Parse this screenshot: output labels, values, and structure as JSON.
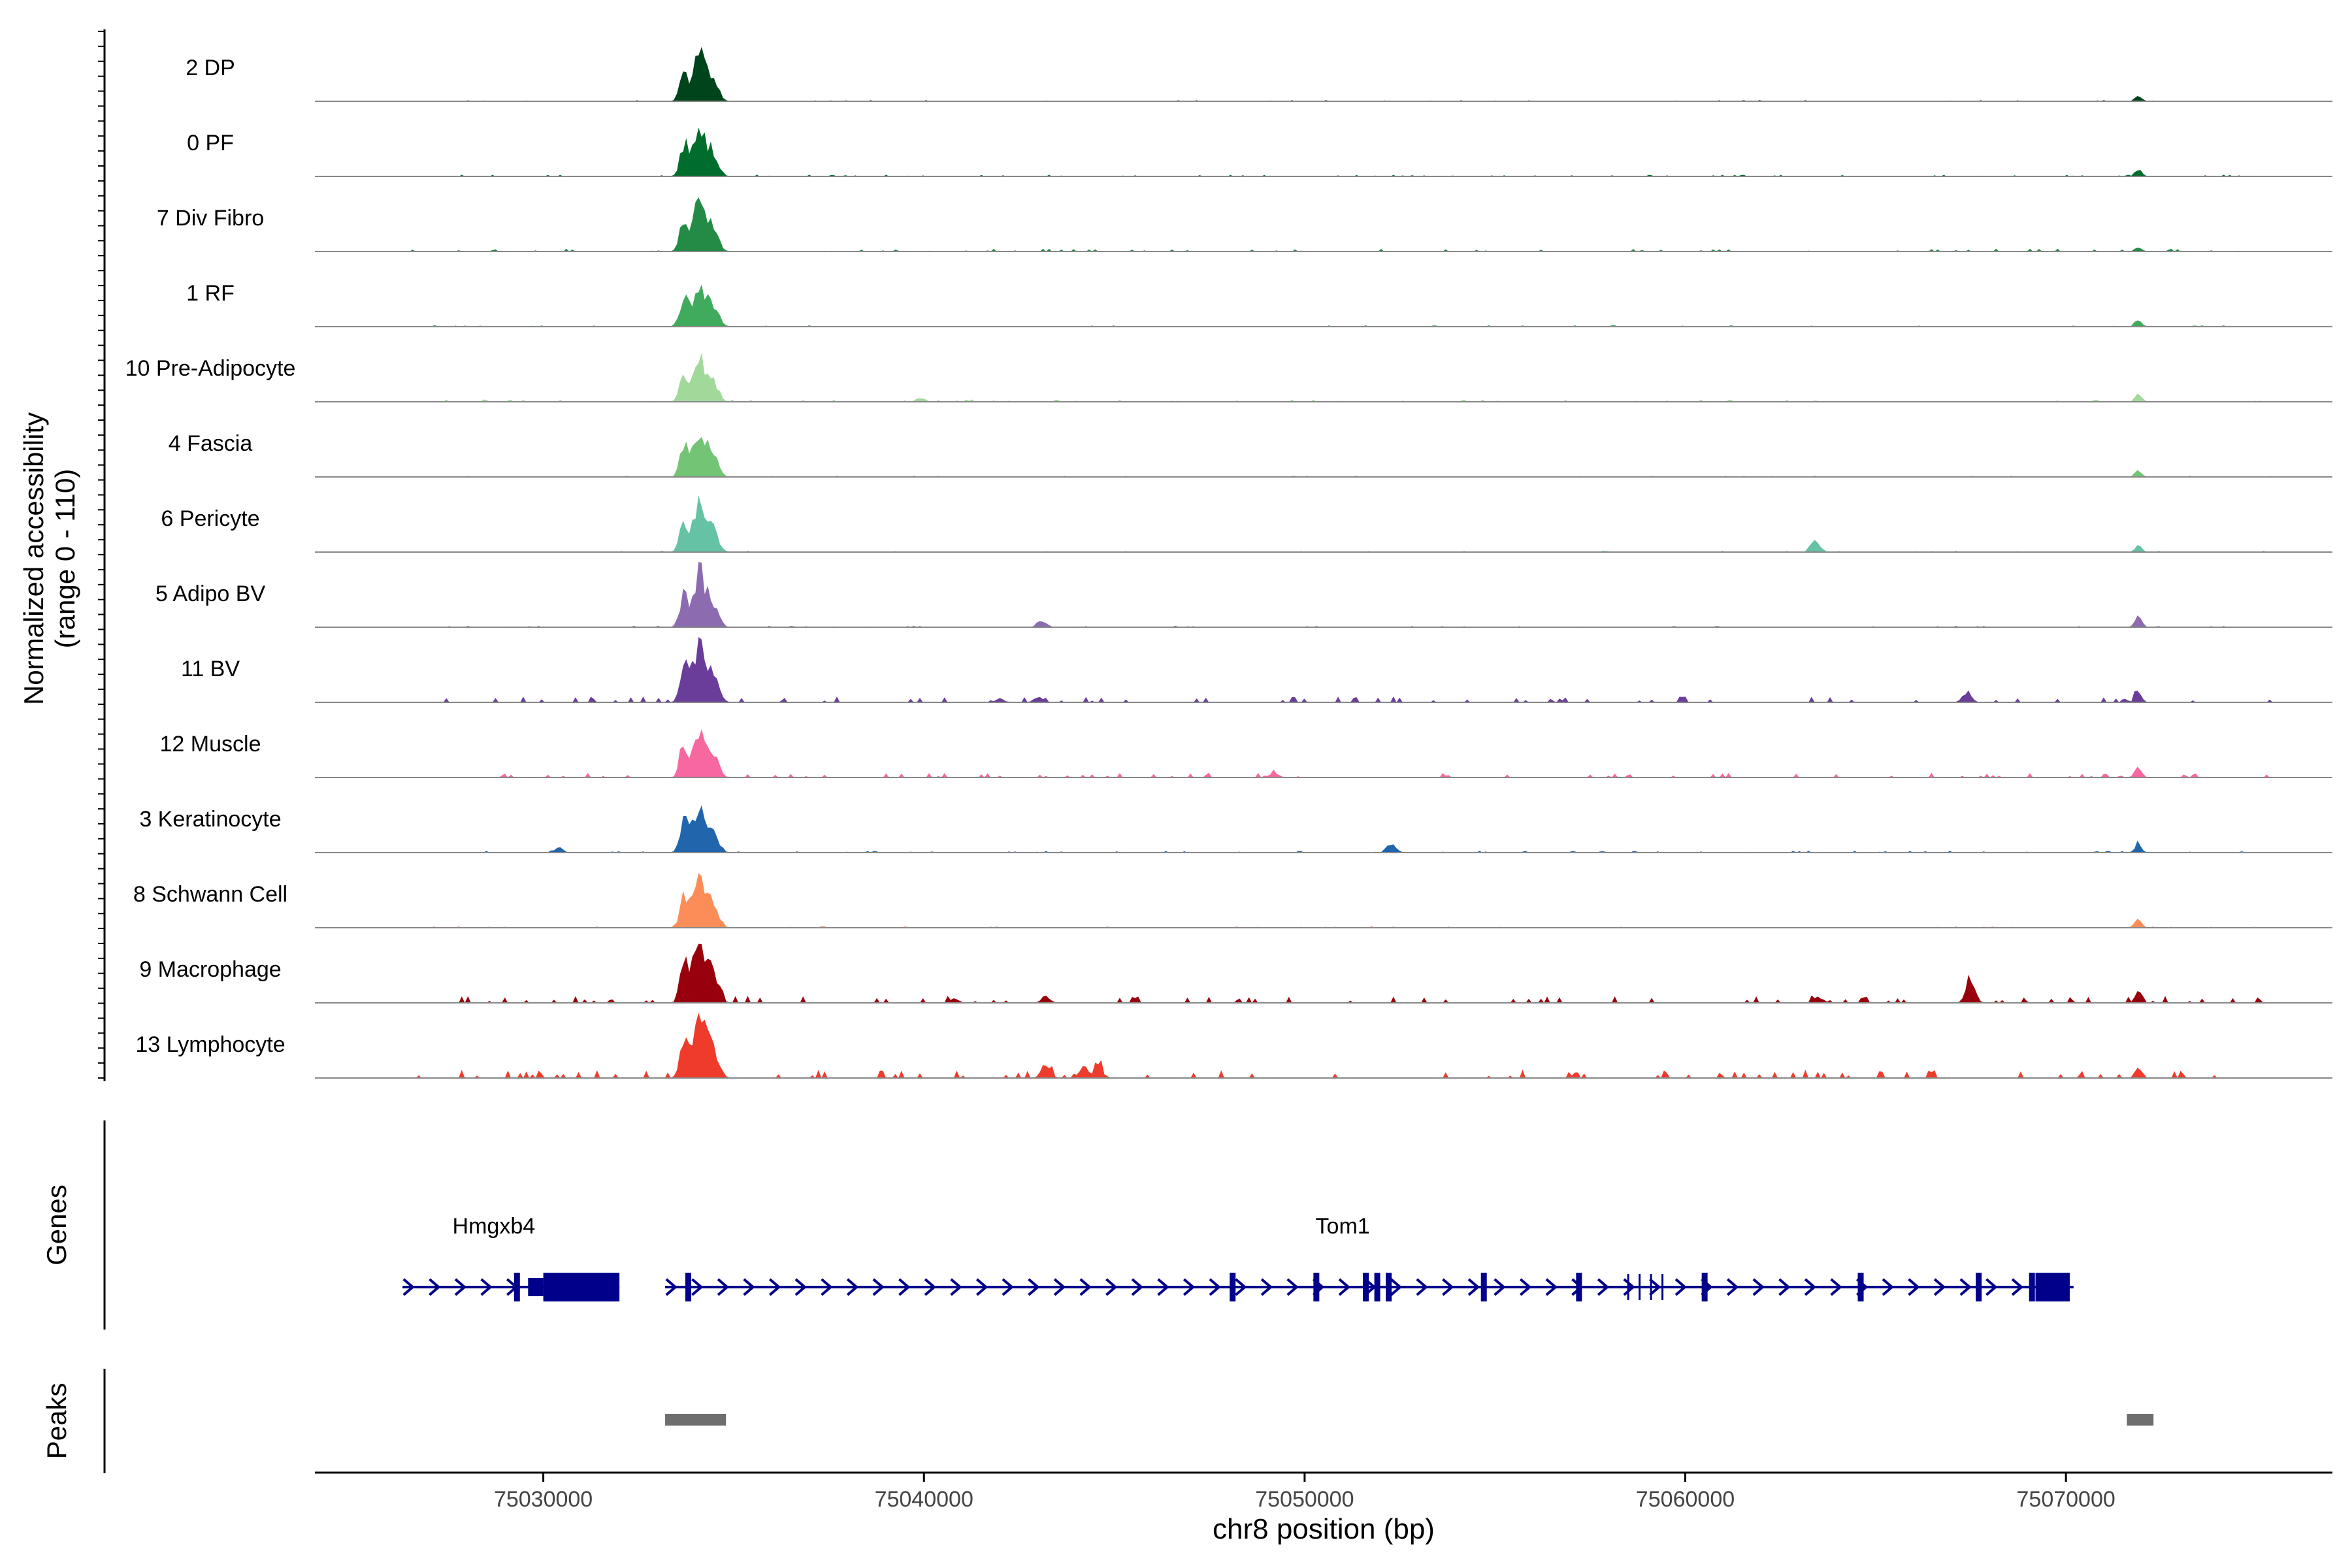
{
  "chart_data": {
    "type": "area",
    "title": "",
    "ylabel_line1": "Normalized accessibility",
    "ylabel_line2": "(range 0 - 110)",
    "genes_label": "Genes",
    "peaks_label": "Peaks",
    "xlabel": "chr8 position (bp)",
    "x_range": [
      75024000,
      75077000
    ],
    "y_range": [
      0,
      110
    ],
    "x_ticks": [
      75030000,
      75040000,
      75050000,
      75060000,
      75070000
    ],
    "x_tick_labels": [
      "75030000",
      "75040000",
      "75050000",
      "75060000",
      "75070000"
    ],
    "tracks": [
      {
        "name": "2 DP",
        "color": "#00441b",
        "main": 78,
        "sec": 9,
        "extra": [],
        "noise": 0.5
      },
      {
        "name": "0 PF",
        "color": "#006d2c",
        "main": 84,
        "sec": 12,
        "extra": [],
        "noise": 0.7
      },
      {
        "name": "7 Div Fibro",
        "color": "#238b45",
        "main": 88,
        "sec": 7,
        "extra": [],
        "noise": 1.2
      },
      {
        "name": "1 RF",
        "color": "#41ab5d",
        "main": 74,
        "sec": 13,
        "extra": [],
        "noise": 0.7
      },
      {
        "name": "10 Pre-Adipocyte",
        "color": "#a1d99b",
        "main": 72,
        "sec": 14,
        "extra": [
          [
            75039900,
            6
          ]
        ],
        "noise": 1.0
      },
      {
        "name": "4 Fascia",
        "color": "#74c476",
        "main": 80,
        "sec": 12,
        "extra": [],
        "noise": 0.6
      },
      {
        "name": "6 Pericyte",
        "color": "#66c2a4",
        "main": 82,
        "sec": 10,
        "extra": [
          [
            75063400,
            18
          ]
        ],
        "noise": 0.6
      },
      {
        "name": "5 Adipo BV",
        "color": "#8c6bb1",
        "main": 88,
        "sec": 18,
        "extra": [
          [
            75043100,
            10
          ]
        ],
        "noise": 0.6
      },
      {
        "name": "11 BV",
        "color": "#6a3d9a",
        "main": 100,
        "sec": 17,
        "extra": [
          [
            75067400,
            18
          ],
          [
            75043000,
            8
          ],
          [
            75042000,
            6
          ]
        ],
        "noise": 2.5
      },
      {
        "name": "12 Muscle",
        "color": "#f768a1",
        "main": 85,
        "sec": 18,
        "extra": [
          [
            75049200,
            7
          ]
        ],
        "noise": 2.0
      },
      {
        "name": "3 Keratinocyte",
        "color": "#2166ac",
        "main": 80,
        "sec": 15,
        "extra": [
          [
            75052300,
            12
          ],
          [
            75030400,
            8
          ]
        ],
        "noise": 0.8
      },
      {
        "name": "8 Schwann Cell",
        "color": "#fc8d59",
        "main": 82,
        "sec": 14,
        "extra": [],
        "noise": 0.6
      },
      {
        "name": "9 Macrophage",
        "color": "#99000d",
        "main": 105,
        "sec": 20,
        "extra": [
          [
            75067500,
            35
          ],
          [
            75043200,
            11
          ],
          [
            75063500,
            9
          ],
          [
            75040800,
            7
          ]
        ],
        "noise": 3.0
      },
      {
        "name": "13 Lymphocyte",
        "color": "#ef3b2c",
        "main": 110,
        "sec": 22,
        "extra": [
          [
            75043200,
            22
          ],
          [
            75044200,
            18
          ],
          [
            75044600,
            16
          ]
        ],
        "noise": 3.5
      }
    ],
    "genes": [
      {
        "name": "Hmgxb4",
        "start": 75026300,
        "end": 75032000,
        "label_x": 75028700,
        "utr": [
          [
            75029600,
            75030000
          ]
        ],
        "cds": [
          [
            75030000,
            75032000
          ]
        ],
        "exons": [
          75029300
        ]
      },
      {
        "name": "Tom1",
        "start": 75033200,
        "end": 75070200,
        "label_x": 75051000,
        "utr": [],
        "cds": [
          [
            75069200,
            75070100
          ]
        ],
        "exons": [
          75033800,
          75048100,
          75050300,
          75051600,
          75051900,
          75052200,
          75054700,
          75057200,
          75060500,
          75064600,
          75067700,
          75069100
        ],
        "thin": [
          75058500,
          75058800,
          75059100,
          75059400
        ]
      }
    ],
    "peaks": [
      [
        75033200,
        75034800
      ],
      [
        75071600,
        75072300
      ]
    ]
  }
}
